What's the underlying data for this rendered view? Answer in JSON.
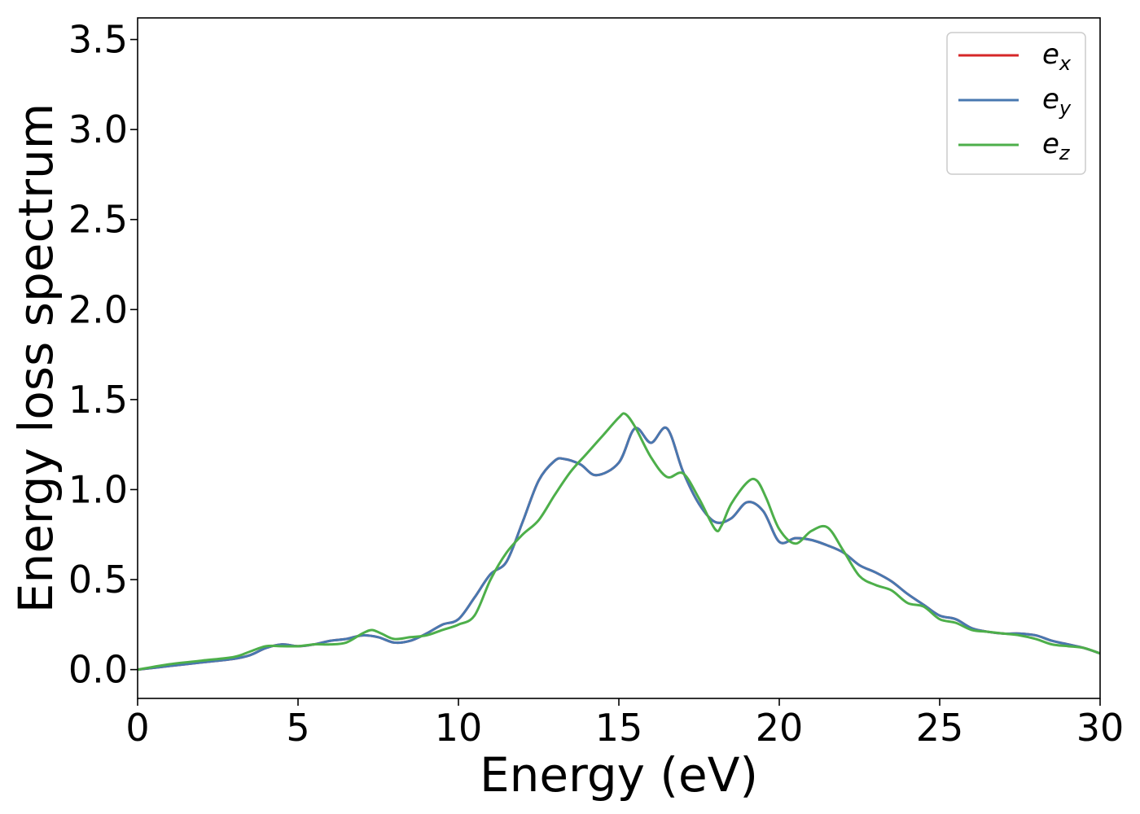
{
  "chart_data": {
    "type": "line",
    "xlabel": "Energy (eV)",
    "ylabel": "Energy loss spectrum",
    "xlim": [
      0,
      30
    ],
    "ylim": [
      -0.16,
      3.62
    ],
    "xticks": [
      "0",
      "5",
      "10",
      "15",
      "20",
      "25",
      "30"
    ],
    "yticks": [
      "0.0",
      "0.5",
      "1.0",
      "1.5",
      "2.0",
      "2.5",
      "3.0",
      "3.5"
    ],
    "grid": false,
    "legend_position": "top-right",
    "series": [
      {
        "name": "e",
        "subscript": "x",
        "color": "#d62728",
        "x": [
          0,
          1,
          2,
          3,
          3.5,
          4,
          4.5,
          5,
          5.5,
          6,
          6.5,
          7,
          7.5,
          8,
          8.5,
          9,
          9.5,
          10,
          10.5,
          11,
          11.5,
          12,
          12.5,
          13,
          13.3,
          13.8,
          14.3,
          15,
          15.5,
          16,
          16.5,
          17,
          17.5,
          18,
          18.5,
          19,
          19.5,
          20,
          20.5,
          21,
          21.5,
          22,
          22.5,
          23,
          23.5,
          24,
          24.5,
          25,
          25.5,
          26,
          26.5,
          27,
          27.5,
          28,
          28.5,
          29,
          29.5,
          30
        ],
        "values": [
          0.0,
          0.02,
          0.04,
          0.06,
          0.08,
          0.12,
          0.14,
          0.13,
          0.14,
          0.16,
          0.17,
          0.19,
          0.18,
          0.15,
          0.16,
          0.2,
          0.25,
          0.28,
          0.4,
          0.53,
          0.6,
          0.82,
          1.05,
          1.16,
          1.17,
          1.14,
          1.08,
          1.15,
          1.34,
          1.26,
          1.34,
          1.1,
          0.92,
          0.82,
          0.84,
          0.93,
          0.88,
          0.71,
          0.73,
          0.72,
          0.69,
          0.65,
          0.58,
          0.54,
          0.49,
          0.42,
          0.36,
          0.3,
          0.28,
          0.23,
          0.21,
          0.2,
          0.2,
          0.19,
          0.16,
          0.14,
          0.12,
          0.09
        ]
      },
      {
        "name": "e",
        "subscript": "y",
        "color": "#4878b0",
        "x": [
          0,
          1,
          2,
          3,
          3.5,
          4,
          4.5,
          5,
          5.5,
          6,
          6.5,
          7,
          7.5,
          8,
          8.5,
          9,
          9.5,
          10,
          10.5,
          11,
          11.5,
          12,
          12.5,
          13,
          13.3,
          13.8,
          14.3,
          15,
          15.5,
          16,
          16.5,
          17,
          17.5,
          18,
          18.5,
          19,
          19.5,
          20,
          20.5,
          21,
          21.5,
          22,
          22.5,
          23,
          23.5,
          24,
          24.5,
          25,
          25.5,
          26,
          26.5,
          27,
          27.5,
          28,
          28.5,
          29,
          29.5,
          30
        ],
        "values": [
          0.0,
          0.02,
          0.04,
          0.06,
          0.08,
          0.12,
          0.14,
          0.13,
          0.14,
          0.16,
          0.17,
          0.19,
          0.18,
          0.15,
          0.16,
          0.2,
          0.25,
          0.28,
          0.4,
          0.53,
          0.6,
          0.82,
          1.05,
          1.16,
          1.17,
          1.14,
          1.08,
          1.15,
          1.34,
          1.26,
          1.34,
          1.1,
          0.92,
          0.82,
          0.84,
          0.93,
          0.88,
          0.71,
          0.73,
          0.72,
          0.69,
          0.65,
          0.58,
          0.54,
          0.49,
          0.42,
          0.36,
          0.3,
          0.28,
          0.23,
          0.21,
          0.2,
          0.2,
          0.19,
          0.16,
          0.14,
          0.12,
          0.09
        ]
      },
      {
        "name": "e",
        "subscript": "z",
        "color": "#4daf4a",
        "x": [
          0,
          1,
          2,
          3,
          3.5,
          4,
          4.5,
          5,
          5.5,
          6,
          6.5,
          7,
          7.3,
          7.6,
          8,
          8.5,
          9,
          9.5,
          10,
          10.5,
          11,
          11.5,
          12,
          12.5,
          13,
          13.5,
          14,
          14.5,
          15,
          15.2,
          15.5,
          16,
          16.5,
          17,
          17.5,
          18,
          18.2,
          18.5,
          19,
          19.3,
          19.6,
          20,
          20.5,
          21,
          21.5,
          22,
          22.5,
          23,
          23.5,
          24,
          24.5,
          25,
          25.5,
          26,
          26.5,
          27,
          27.5,
          28,
          28.5,
          29,
          29.5,
          30
        ],
        "values": [
          0.0,
          0.03,
          0.05,
          0.07,
          0.1,
          0.13,
          0.13,
          0.13,
          0.14,
          0.14,
          0.15,
          0.2,
          0.22,
          0.2,
          0.17,
          0.18,
          0.19,
          0.22,
          0.25,
          0.3,
          0.5,
          0.65,
          0.75,
          0.83,
          0.97,
          1.1,
          1.2,
          1.3,
          1.4,
          1.42,
          1.35,
          1.18,
          1.07,
          1.09,
          0.95,
          0.78,
          0.8,
          0.92,
          1.04,
          1.05,
          0.95,
          0.78,
          0.7,
          0.77,
          0.79,
          0.66,
          0.52,
          0.47,
          0.44,
          0.37,
          0.35,
          0.28,
          0.26,
          0.22,
          0.21,
          0.2,
          0.19,
          0.17,
          0.14,
          0.13,
          0.12,
          0.09
        ]
      }
    ]
  }
}
